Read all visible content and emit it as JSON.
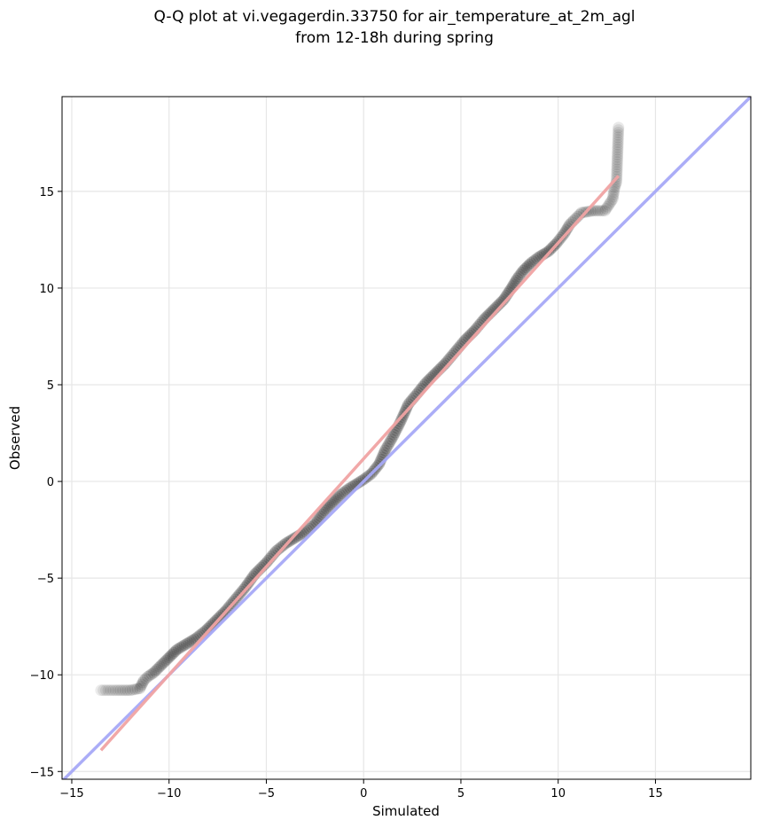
{
  "chart_data": {
    "type": "scatter",
    "title": "Q-Q plot at vi.vegagerdin.33750 for air_temperature_at_2m_agl",
    "subtitle": "from 12-18h during spring",
    "xlabel": "Simulated",
    "ylabel": "Observed",
    "xlim": [
      -15.5,
      19.9
    ],
    "ylim": [
      -15.4,
      19.9
    ],
    "xticks": [
      -15,
      -10,
      -5,
      0,
      5,
      10,
      15
    ],
    "yticks": [
      -15,
      -10,
      -5,
      0,
      5,
      10,
      15
    ],
    "xtick_labels": [
      "−15",
      "−10",
      "−5",
      "0",
      "5",
      "10",
      "15"
    ],
    "ytick_labels": [
      "−15",
      "−10",
      "−5",
      "0",
      "5",
      "10",
      "15"
    ],
    "grid": true,
    "quantiles": [
      [
        -13.5,
        -10.8
      ],
      [
        -12.0,
        -10.8
      ],
      [
        -11.5,
        -10.7
      ],
      [
        -11.3,
        -10.3
      ],
      [
        -11.1,
        -10.1
      ],
      [
        -10.8,
        -9.9
      ],
      [
        -10.4,
        -9.5
      ],
      [
        -10.0,
        -9.1
      ],
      [
        -9.6,
        -8.7
      ],
      [
        -9.1,
        -8.4
      ],
      [
        -8.6,
        -8.1
      ],
      [
        -8.1,
        -7.7
      ],
      [
        -7.6,
        -7.2
      ],
      [
        -7.1,
        -6.7
      ],
      [
        -6.6,
        -6.1
      ],
      [
        -6.1,
        -5.5
      ],
      [
        -5.6,
        -4.8
      ],
      [
        -5.0,
        -4.2
      ],
      [
        -4.5,
        -3.6
      ],
      [
        -4.0,
        -3.2
      ],
      [
        -3.5,
        -2.9
      ],
      [
        -3.0,
        -2.6
      ],
      [
        -2.5,
        -2.2
      ],
      [
        -2.0,
        -1.5
      ],
      [
        -1.6,
        -1.1
      ],
      [
        -1.2,
        -0.7
      ],
      [
        -0.8,
        -0.4
      ],
      [
        -0.4,
        -0.15
      ],
      [
        0.0,
        0.1
      ],
      [
        0.4,
        0.4
      ],
      [
        0.8,
        0.9
      ],
      [
        1.1,
        1.6
      ],
      [
        1.5,
        2.3
      ],
      [
        1.9,
        3.1
      ],
      [
        2.3,
        4.0
      ],
      [
        2.8,
        4.6
      ],
      [
        3.2,
        5.1
      ],
      [
        3.7,
        5.6
      ],
      [
        4.2,
        6.1
      ],
      [
        4.7,
        6.7
      ],
      [
        5.2,
        7.3
      ],
      [
        5.7,
        7.8
      ],
      [
        6.2,
        8.4
      ],
      [
        6.7,
        8.9
      ],
      [
        7.2,
        9.4
      ],
      [
        7.6,
        10.0
      ],
      [
        7.9,
        10.5
      ],
      [
        8.2,
        10.9
      ],
      [
        8.6,
        11.3
      ],
      [
        9.0,
        11.6
      ],
      [
        9.5,
        11.9
      ],
      [
        9.9,
        12.3
      ],
      [
        10.3,
        12.8
      ],
      [
        10.6,
        13.3
      ],
      [
        10.9,
        13.6
      ],
      [
        11.2,
        13.9
      ],
      [
        11.8,
        14.0
      ],
      [
        12.4,
        14.0
      ],
      [
        12.8,
        14.6
      ],
      [
        12.9,
        15.2
      ],
      [
        13.0,
        15.5
      ],
      [
        13.1,
        18.3
      ]
    ],
    "reference_line": {
      "name": "y = x",
      "color": "#a6a9f7",
      "points": [
        [
          -15.5,
          -15.5
        ],
        [
          19.9,
          19.9
        ]
      ]
    },
    "fit_line": {
      "color": "#f0a3a3",
      "points": [
        [
          -13.5,
          -13.9
        ],
        [
          13.1,
          15.8
        ]
      ]
    }
  }
}
